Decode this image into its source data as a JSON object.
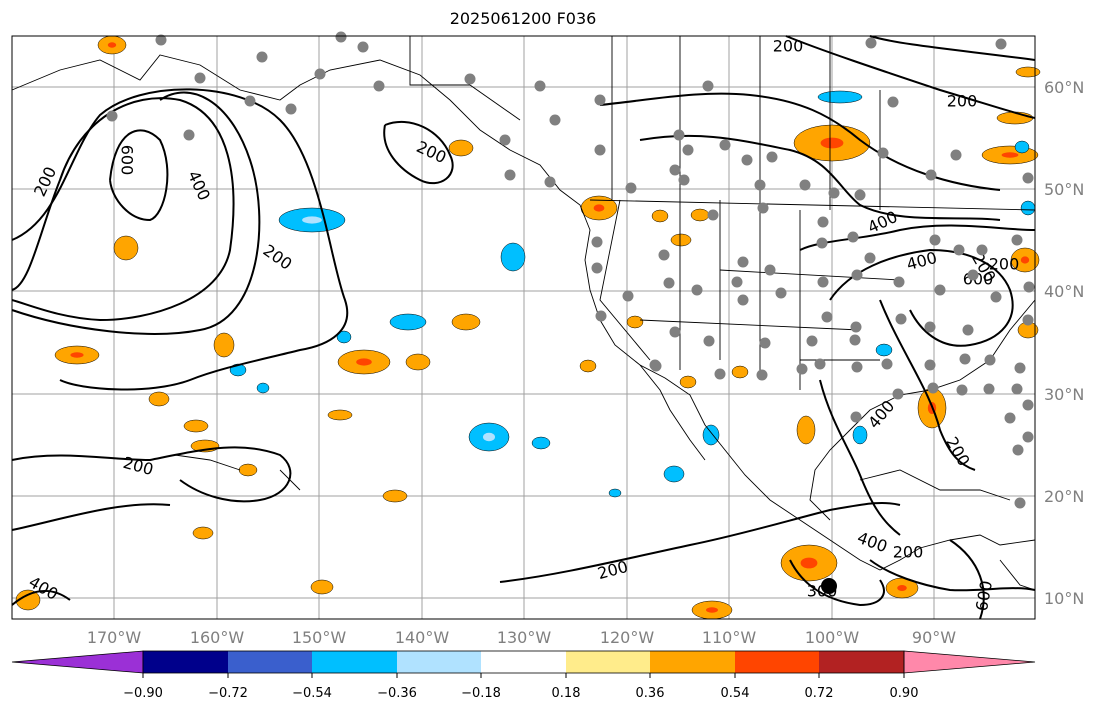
{
  "title": "2025061200 F036",
  "lon_labels": [
    "170°W",
    "160°W",
    "150°W",
    "140°W",
    "130°W",
    "120°W",
    "110°W",
    "100°W",
    "90°W"
  ],
  "lat_labels": [
    "60°N",
    "50°N",
    "40°N",
    "30°N",
    "20°N",
    "10°N"
  ],
  "colorbar": {
    "colors": [
      "#9b30d6",
      "#00008b",
      "#3a5fcd",
      "#00bfff",
      "#b0e2ff",
      "#ffffff",
      "#ffec8b",
      "#ffa500",
      "#ff4500",
      "#b22222",
      "#ff88aa"
    ],
    "tick_labels": [
      "−0.90",
      "−0.72",
      "−0.54",
      "−0.36",
      "−0.18",
      "0.18",
      "0.36",
      "0.54",
      "0.72",
      "0.90"
    ]
  },
  "contour_labels": [
    "200",
    "400",
    "600",
    "200",
    "200",
    "200",
    "400",
    "200",
    "400",
    "200",
    "200",
    "200",
    "400",
    "200",
    "200",
    "400",
    "300",
    "600",
    "600",
    "400",
    "200"
  ],
  "colors": {
    "positive": "#ffa500",
    "positive_strong": "#ff4500",
    "negative": "#00bfff",
    "negative_weak": "#b0e2ff",
    "station": "#808080",
    "grid": "#a0a0a0"
  }
}
